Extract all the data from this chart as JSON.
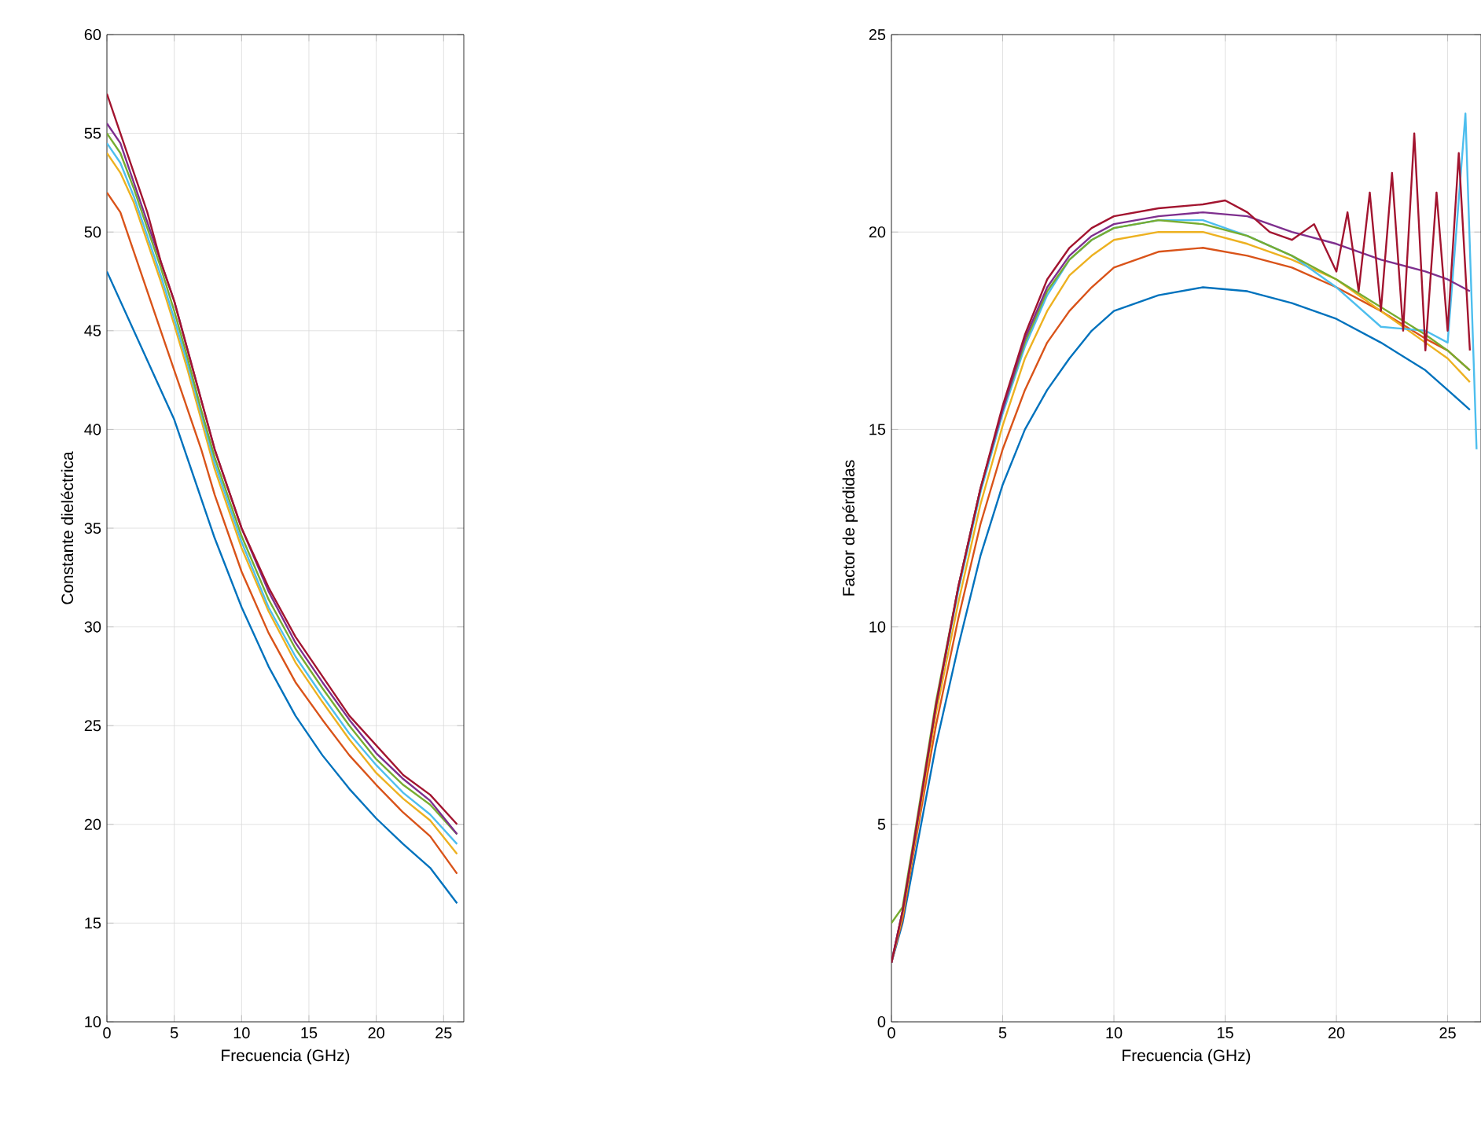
{
  "chart_data": [
    {
      "type": "line",
      "xlabel": "Frecuencia (GHz)",
      "ylabel": "Constante dieléctrica",
      "xlim": [
        0,
        26.5
      ],
      "ylim": [
        10,
        60
      ],
      "xticks": [
        0,
        5,
        10,
        15,
        20,
        25
      ],
      "yticks": [
        10,
        15,
        20,
        25,
        30,
        35,
        40,
        45,
        50,
        55,
        60
      ],
      "grid": true,
      "x": [
        0,
        1,
        2,
        3,
        4,
        5,
        6,
        7,
        8,
        10,
        12,
        14,
        16,
        18,
        20,
        22,
        24,
        26
      ],
      "series": [
        {
          "color": "#0072bd",
          "values": [
            48,
            46.5,
            45,
            43.5,
            42,
            40.5,
            38.5,
            36.5,
            34.5,
            31,
            28,
            25.5,
            23.5,
            21.8,
            20.3,
            19,
            17.8,
            16
          ]
        },
        {
          "color": "#d95319",
          "values": [
            52,
            51,
            49,
            47,
            45,
            43,
            41,
            39,
            36.7,
            32.8,
            29.7,
            27.2,
            25.3,
            23.5,
            22,
            20.6,
            19.4,
            17.5
          ]
        },
        {
          "color": "#edb120",
          "values": [
            54,
            53,
            51.5,
            49.5,
            47.5,
            45.3,
            43,
            40.5,
            38,
            34,
            30.8,
            28.2,
            26.2,
            24.3,
            22.6,
            21.3,
            20.2,
            18.5
          ]
        },
        {
          "color": "#4dbeee",
          "values": [
            54.5,
            53.5,
            51.8,
            49.8,
            47.8,
            45.6,
            43.3,
            40.8,
            38.3,
            34.3,
            31,
            28.5,
            26.5,
            24.6,
            23,
            21.6,
            20.5,
            19
          ]
        },
        {
          "color": "#77ac30",
          "values": [
            55,
            54,
            52.2,
            50.2,
            48.2,
            46,
            43.6,
            41,
            38.6,
            34.6,
            31.4,
            28.9,
            26.9,
            25,
            23.3,
            22,
            21,
            19.5
          ]
        },
        {
          "color": "#7e2f8e",
          "values": [
            55.5,
            54.5,
            52.5,
            50.5,
            48.5,
            46.5,
            44,
            41.5,
            39,
            35,
            31.8,
            29.2,
            27.2,
            25.3,
            23.6,
            22.3,
            21.2,
            19.5
          ]
        },
        {
          "color": "#a2142f",
          "values": [
            57,
            55,
            53,
            51,
            48.5,
            46.5,
            44,
            41.5,
            39,
            35,
            32,
            29.5,
            27.5,
            25.5,
            24,
            22.5,
            21.5,
            20
          ]
        }
      ]
    },
    {
      "type": "line",
      "xlabel": "Frecuencia (GHz)",
      "ylabel": "Factor de pérdidas",
      "xlim": [
        0,
        26.5
      ],
      "ylim": [
        0,
        25
      ],
      "xticks": [
        0,
        5,
        10,
        15,
        20,
        25
      ],
      "yticks": [
        0,
        5,
        10,
        15,
        20,
        25
      ],
      "grid": true,
      "x": [
        0,
        0.5,
        1,
        2,
        3,
        4,
        5,
        6,
        7,
        8,
        9,
        10,
        12,
        14,
        16,
        18,
        20,
        22,
        24,
        25,
        26
      ],
      "series": [
        {
          "color": "#0072bd",
          "values": [
            1.5,
            2.5,
            4,
            7,
            9.5,
            11.8,
            13.6,
            15,
            16,
            16.8,
            17.5,
            18,
            18.4,
            18.6,
            18.5,
            18.2,
            17.8,
            17.2,
            16.5,
            16,
            15.5
          ]
        },
        {
          "color": "#d95319",
          "values": [
            1.5,
            2.6,
            4.3,
            7.5,
            10.2,
            12.6,
            14.5,
            16,
            17.2,
            18,
            18.6,
            19.1,
            19.5,
            19.6,
            19.4,
            19.1,
            18.6,
            18,
            17.3,
            17,
            16.5
          ]
        },
        {
          "color": "#edb120",
          "values": [
            1.5,
            2.7,
            4.4,
            7.8,
            10.6,
            13.1,
            15.1,
            16.8,
            18,
            18.9,
            19.4,
            19.8,
            20,
            20,
            19.7,
            19.3,
            18.8,
            18,
            17.2,
            16.8,
            16.2
          ]
        },
        {
          "color": "#4dbeee",
          "x": [
            0,
            0.5,
            1,
            2,
            3,
            4,
            5,
            6,
            7,
            8,
            9,
            10,
            12,
            14,
            16,
            18,
            20,
            22,
            24,
            25,
            25.8,
            26.3
          ],
          "values": [
            1.5,
            2.8,
            4.5,
            8,
            10.9,
            13.4,
            15.4,
            17.1,
            18.4,
            19.3,
            19.8,
            20.1,
            20.3,
            20.3,
            19.9,
            19.4,
            18.6,
            17.6,
            17.5,
            17.2,
            23,
            14.5
          ]
        },
        {
          "color": "#77ac30",
          "values": [
            2.5,
            2.9,
            4.6,
            8.1,
            11,
            13.5,
            15.5,
            17.2,
            18.5,
            19.3,
            19.8,
            20.1,
            20.3,
            20.2,
            19.9,
            19.4,
            18.8,
            18.1,
            17.4,
            17,
            16.5
          ]
        },
        {
          "color": "#7e2f8e",
          "values": [
            1.5,
            2.8,
            4.5,
            8,
            11,
            13.5,
            15.5,
            17.3,
            18.6,
            19.4,
            19.9,
            20.2,
            20.4,
            20.5,
            20.4,
            20,
            19.7,
            19.3,
            19,
            18.8,
            18.5
          ]
        },
        {
          "color": "#a2142f",
          "x": [
            0,
            0.5,
            1,
            2,
            3,
            4,
            5,
            6,
            7,
            8,
            9,
            10,
            12,
            14,
            15,
            16,
            17,
            18,
            19,
            20,
            20.5,
            21,
            21.5,
            22,
            22.5,
            23,
            23.5,
            24,
            24.5,
            25,
            25.5,
            26
          ],
          "values": [
            1.5,
            2.8,
            4.5,
            8,
            11,
            13.5,
            15.6,
            17.4,
            18.8,
            19.6,
            20.1,
            20.4,
            20.6,
            20.7,
            20.8,
            20.5,
            20,
            19.8,
            20.2,
            19,
            20.5,
            18.5,
            21,
            18,
            21.5,
            17.5,
            22.5,
            17,
            21,
            17.5,
            22,
            17
          ]
        }
      ]
    }
  ]
}
